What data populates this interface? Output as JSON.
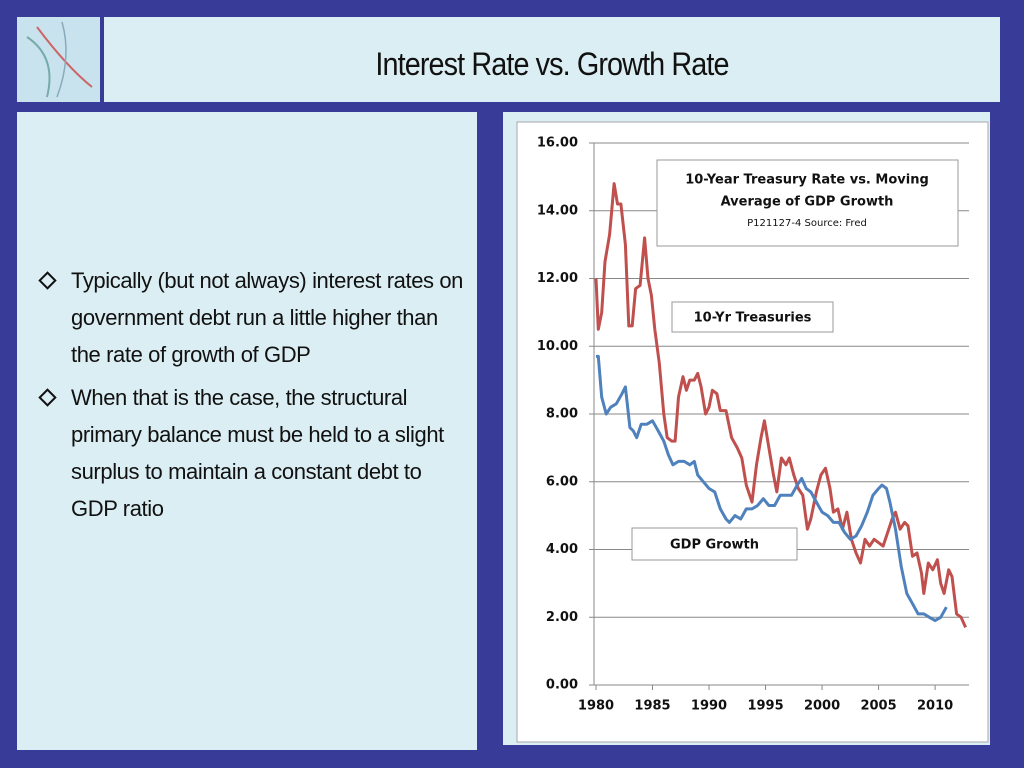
{
  "header": {
    "title": "Interest Rate vs. Growth Rate"
  },
  "bullets": [
    "Typically (but not always) interest rates on government debt run a little higher than the rate of growth of GDP",
    "When that is the case, the structural primary balance must be held to a slight surplus to maintain a constant debt to GDP ratio"
  ],
  "chart_data": {
    "type": "line",
    "title": [
      "10-Year Treasury Rate vs. Moving",
      "Average of GDP Growth"
    ],
    "subtitle": "P121127-4 Source: Fred",
    "xlim": [
      1980,
      2013
    ],
    "xticks": [
      1980,
      1985,
      1990,
      1995,
      2000,
      2005,
      2010
    ],
    "ylim": [
      0,
      16
    ],
    "yticks": [
      {
        "value": 0,
        "label": "0.00"
      },
      {
        "value": 2,
        "label": "2.00"
      },
      {
        "value": 4,
        "label": "4.00"
      },
      {
        "value": 6,
        "label": "6.00"
      },
      {
        "value": 8,
        "label": "8.00"
      },
      {
        "value": 10,
        "label": "10.00"
      },
      {
        "value": 12,
        "label": "12.00"
      },
      {
        "value": 14,
        "label": "14.00"
      },
      {
        "value": 16,
        "label": "16.00"
      }
    ],
    "grid": true,
    "series": [
      {
        "name": "10-Yr Treasuries",
        "color": "#c0504d",
        "x": [
          1980.0,
          1980.2,
          1980.5,
          1980.8,
          1981.2,
          1981.6,
          1981.9,
          1982.2,
          1982.6,
          1982.9,
          1983.2,
          1983.5,
          1983.9,
          1984.3,
          1984.6,
          1984.9,
          1985.2,
          1985.6,
          1986.0,
          1986.3,
          1986.7,
          1987.0,
          1987.3,
          1987.7,
          1988.0,
          1988.3,
          1988.7,
          1989.0,
          1989.3,
          1989.7,
          1990.0,
          1990.3,
          1990.7,
          1991.0,
          1991.5,
          1992.0,
          1992.5,
          1992.9,
          1993.3,
          1993.8,
          1994.2,
          1994.6,
          1994.9,
          1995.3,
          1995.7,
          1996.0,
          1996.4,
          1996.8,
          1997.1,
          1997.5,
          1997.9,
          1998.3,
          1998.7,
          1999.0,
          1999.5,
          1999.9,
          2000.3,
          2000.7,
          2001.0,
          2001.4,
          2001.8,
          2002.2,
          2002.6,
          2003.0,
          2003.4,
          2003.8,
          2004.2,
          2004.6,
          2005.0,
          2005.4,
          2005.8,
          2006.2,
          2006.5,
          2006.9,
          2007.3,
          2007.6,
          2008.0,
          2008.4,
          2008.8,
          2009.0,
          2009.4,
          2009.8,
          2010.2,
          2010.5,
          2010.8,
          2011.2,
          2011.5,
          2011.9,
          2012.3,
          2012.7
        ],
        "values": [
          12.0,
          10.5,
          11.0,
          12.5,
          13.3,
          14.8,
          14.2,
          14.2,
          13.0,
          10.6,
          10.6,
          11.7,
          11.8,
          13.2,
          12.0,
          11.5,
          10.5,
          9.5,
          8.0,
          7.3,
          7.2,
          7.2,
          8.5,
          9.1,
          8.7,
          9.0,
          9.0,
          9.2,
          8.8,
          8.0,
          8.2,
          8.7,
          8.6,
          8.1,
          8.1,
          7.3,
          7.0,
          6.7,
          5.9,
          5.4,
          6.5,
          7.3,
          7.8,
          7.0,
          6.2,
          5.7,
          6.7,
          6.5,
          6.7,
          6.2,
          5.8,
          5.6,
          4.6,
          4.9,
          5.7,
          6.2,
          6.4,
          5.8,
          5.1,
          5.2,
          4.6,
          5.1,
          4.3,
          3.9,
          3.6,
          4.3,
          4.1,
          4.3,
          4.2,
          4.1,
          4.5,
          4.9,
          5.1,
          4.6,
          4.8,
          4.7,
          3.8,
          3.9,
          3.3,
          2.7,
          3.6,
          3.4,
          3.7,
          3.0,
          2.7,
          3.4,
          3.2,
          2.1,
          2.0,
          1.7
        ]
      },
      {
        "name": "GDP Growth",
        "color": "#4f81bd",
        "x": [
          1980.0,
          1980.2,
          1980.5,
          1980.9,
          1981.3,
          1981.8,
          1982.3,
          1982.6,
          1983.0,
          1983.3,
          1983.6,
          1984.0,
          1984.5,
          1985.0,
          1985.5,
          1986.0,
          1986.4,
          1986.8,
          1987.3,
          1987.8,
          1988.3,
          1988.7,
          1989.0,
          1989.5,
          1990.0,
          1990.5,
          1991.0,
          1991.5,
          1991.8,
          1992.3,
          1992.8,
          1993.3,
          1993.8,
          1994.3,
          1994.8,
          1995.3,
          1995.8,
          1996.3,
          1996.8,
          1997.3,
          1997.8,
          1998.2,
          1998.6,
          1999.0,
          1999.5,
          2000.0,
          2000.5,
          2001.0,
          2001.5,
          2002.0,
          2002.5,
          2003.0,
          2003.5,
          2004.0,
          2004.5,
          2005.0,
          2005.3,
          2005.7,
          2006.0,
          2006.5,
          2007.0,
          2007.5,
          2008.0,
          2008.5,
          2009.0,
          2009.5,
          2010.0,
          2010.5,
          2011.0
        ],
        "values": [
          9.7,
          9.7,
          8.5,
          8.0,
          8.2,
          8.3,
          8.6,
          8.8,
          7.6,
          7.5,
          7.3,
          7.7,
          7.7,
          7.8,
          7.5,
          7.2,
          6.8,
          6.5,
          6.6,
          6.6,
          6.5,
          6.6,
          6.2,
          6.0,
          5.8,
          5.7,
          5.2,
          4.9,
          4.8,
          5.0,
          4.9,
          5.2,
          5.2,
          5.3,
          5.5,
          5.3,
          5.3,
          5.6,
          5.6,
          5.6,
          5.9,
          6.1,
          5.8,
          5.7,
          5.4,
          5.1,
          5.0,
          4.8,
          4.8,
          4.5,
          4.3,
          4.4,
          4.7,
          5.1,
          5.6,
          5.8,
          5.9,
          5.8,
          5.4,
          4.6,
          3.5,
          2.7,
          2.4,
          2.1,
          2.1,
          2.0,
          1.9,
          2.0,
          2.3
        ]
      }
    ]
  }
}
